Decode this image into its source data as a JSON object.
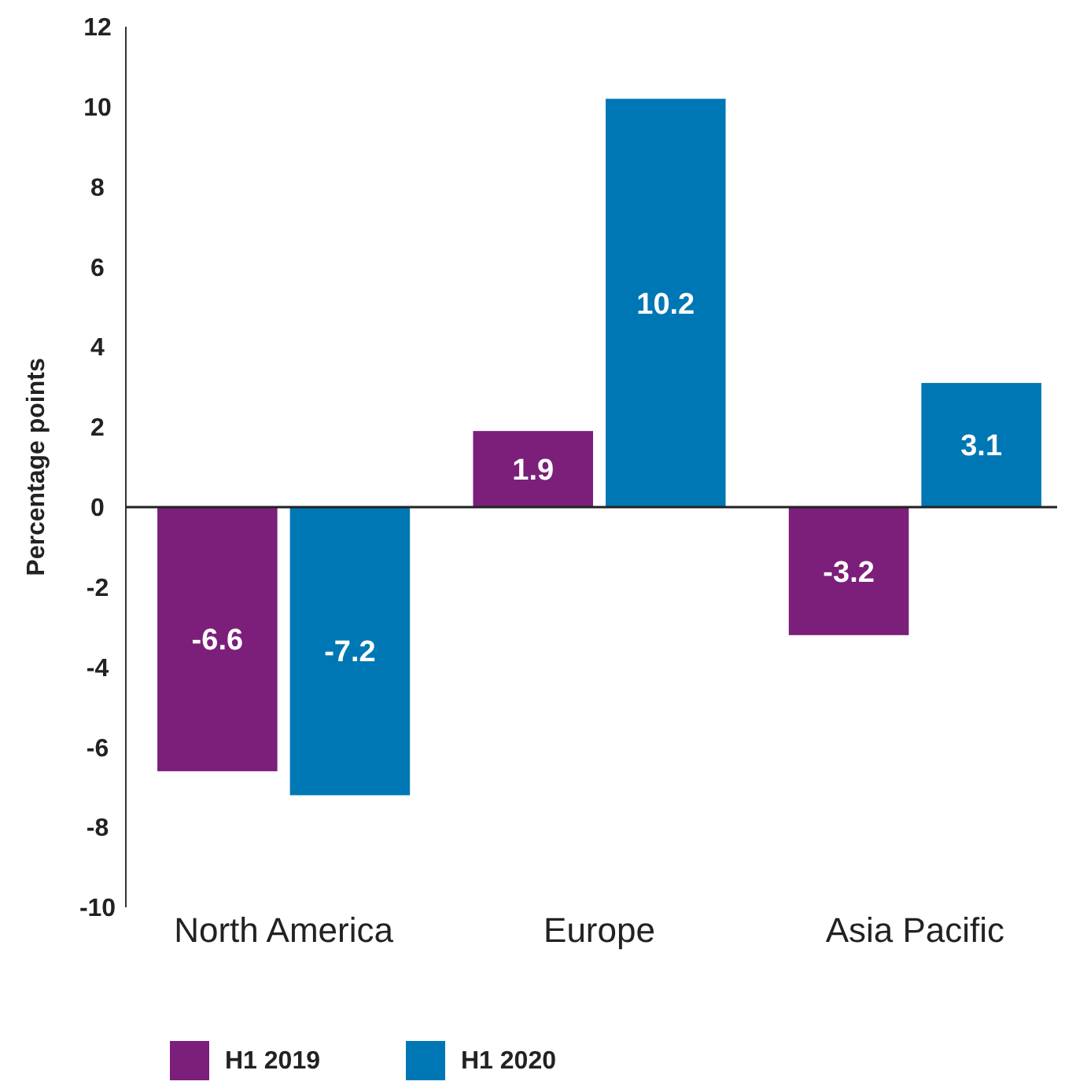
{
  "chart_data": {
    "type": "bar",
    "ylabel": "Percentage points",
    "categories": [
      "North America",
      "Europe",
      "Asia Pacific"
    ],
    "series": [
      {
        "name": "H1 2019",
        "color": "#7b1f7a",
        "values": [
          -6.6,
          1.9,
          -3.2
        ]
      },
      {
        "name": "H1 2020",
        "color": "#0077b5",
        "values": [
          -7.2,
          10.2,
          3.1
        ]
      }
    ],
    "ylim": [
      -10,
      12
    ],
    "yticks": [
      -10,
      -8,
      -6,
      -4,
      -2,
      0,
      2,
      4,
      6,
      8,
      10,
      12
    ],
    "data_labels": true,
    "legend": "bottom"
  }
}
